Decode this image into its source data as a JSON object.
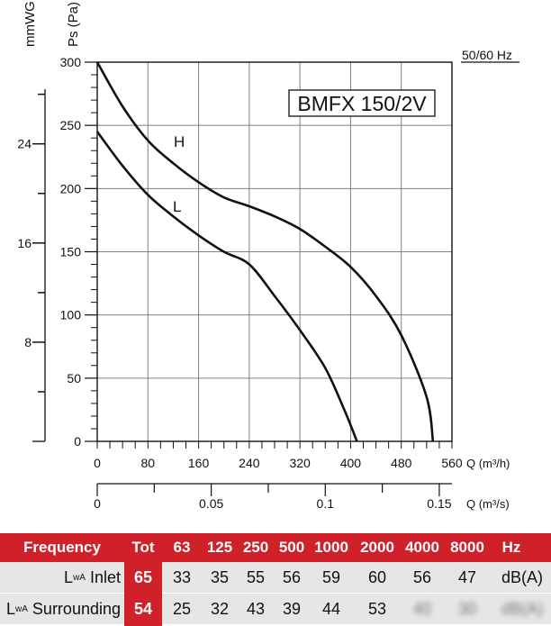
{
  "chart_data": {
    "type": "line",
    "title": "BMFX 150/2V",
    "supply": "50/60 Hz",
    "xlabel": "Q (m³/h)",
    "x2label": "Q (m³/s)",
    "ylabel": "Ps (Pa)",
    "y2label": "mmWG",
    "xlim": [
      0,
      560
    ],
    "ylim": [
      0,
      300
    ],
    "x_ticks": [
      "0",
      "80",
      "160",
      "240",
      "320",
      "400",
      "480",
      "560"
    ],
    "x2_ticks": [
      "0",
      "0.05",
      "0.1",
      "0.15"
    ],
    "y_ticks": [
      "0",
      "50",
      "100",
      "150",
      "200",
      "250",
      "300"
    ],
    "y2_ticks": [
      "8",
      "16",
      "24"
    ],
    "grid": true,
    "series": [
      {
        "name": "H",
        "x": [
          0,
          40,
          80,
          120,
          160,
          200,
          240,
          280,
          320,
          360,
          400,
          440,
          480,
          520,
          530
        ],
        "y": [
          300,
          265,
          238,
          220,
          205,
          193,
          186,
          178,
          168,
          154,
          138,
          115,
          84,
          35,
          0
        ]
      },
      {
        "name": "L",
        "x": [
          0,
          40,
          80,
          120,
          160,
          200,
          240,
          280,
          320,
          360,
          390,
          410
        ],
        "y": [
          245,
          218,
          195,
          178,
          163,
          150,
          140,
          115,
          88,
          58,
          25,
          0
        ]
      }
    ]
  },
  "table": {
    "header": {
      "label": "Frequency",
      "tot": "Tot",
      "bands": [
        "63",
        "125",
        "250",
        "500",
        "1000",
        "2000",
        "4000",
        "8000"
      ],
      "unit": "Hz"
    },
    "rows": [
      {
        "label_prefix": "L",
        "label_sub": "wA",
        "label": "Inlet",
        "tot": "65",
        "values": [
          "33",
          "35",
          "55",
          "56",
          "59",
          "60",
          "56",
          "47"
        ],
        "unit": "dB(A)"
      },
      {
        "label_prefix": "L",
        "label_sub": "wA",
        "label": "Surrounding",
        "tot": "54",
        "values": [
          "25",
          "32",
          "43",
          "39",
          "44",
          "53",
          "40",
          "30"
        ],
        "unit": "dB(A)"
      }
    ]
  },
  "colors": {
    "accent": "#d0202a",
    "row_bg": "#e6e6e6",
    "grid": "#808080"
  }
}
